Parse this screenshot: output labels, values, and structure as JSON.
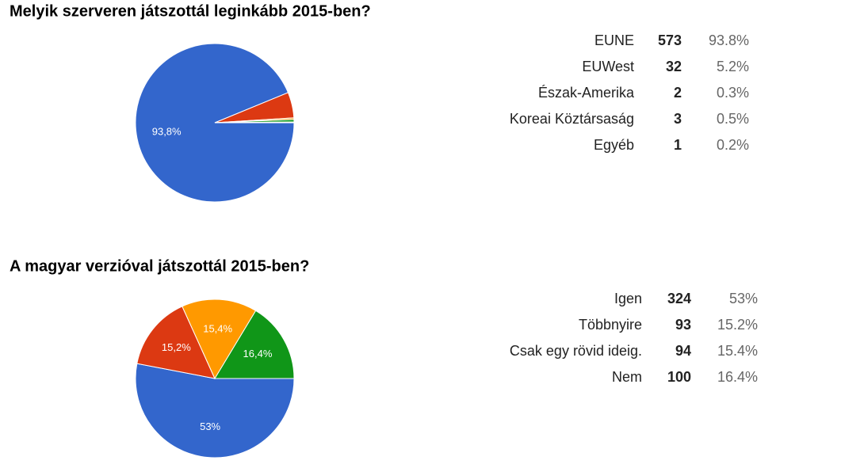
{
  "chart_data": [
    {
      "type": "pie",
      "title": "Melyik szerveren játszottál leginkább 2015-ben?",
      "categories": [
        "EUNE",
        "EUWest",
        "Észak-Amerika",
        "Koreai Köztársaság",
        "Egyéb"
      ],
      "values": [
        573,
        32,
        2,
        3,
        1
      ],
      "percent_labels": [
        "93.8%",
        "5.2%",
        "0.3%",
        "0.5%",
        "0.2%"
      ],
      "slice_labels": [
        "93,8%",
        null,
        null,
        null,
        null
      ],
      "colors": [
        "#3366cc",
        "#dc3912",
        "#ff9900",
        "#109618",
        "#990099"
      ]
    },
    {
      "type": "pie",
      "title": "A magyar verzióval játszottál 2015-ben?",
      "categories": [
        "Igen",
        "Többnyire",
        "Csak egy rövid ideig.",
        "Nem"
      ],
      "values": [
        324,
        93,
        94,
        100
      ],
      "percent_labels": [
        "53%",
        "15.2%",
        "15.4%",
        "16.4%"
      ],
      "slice_labels": [
        "53%",
        "15,2%",
        "15,4%",
        "16,4%"
      ],
      "colors": [
        "#3366cc",
        "#dc3912",
        "#ff9900",
        "#109618"
      ]
    }
  ]
}
